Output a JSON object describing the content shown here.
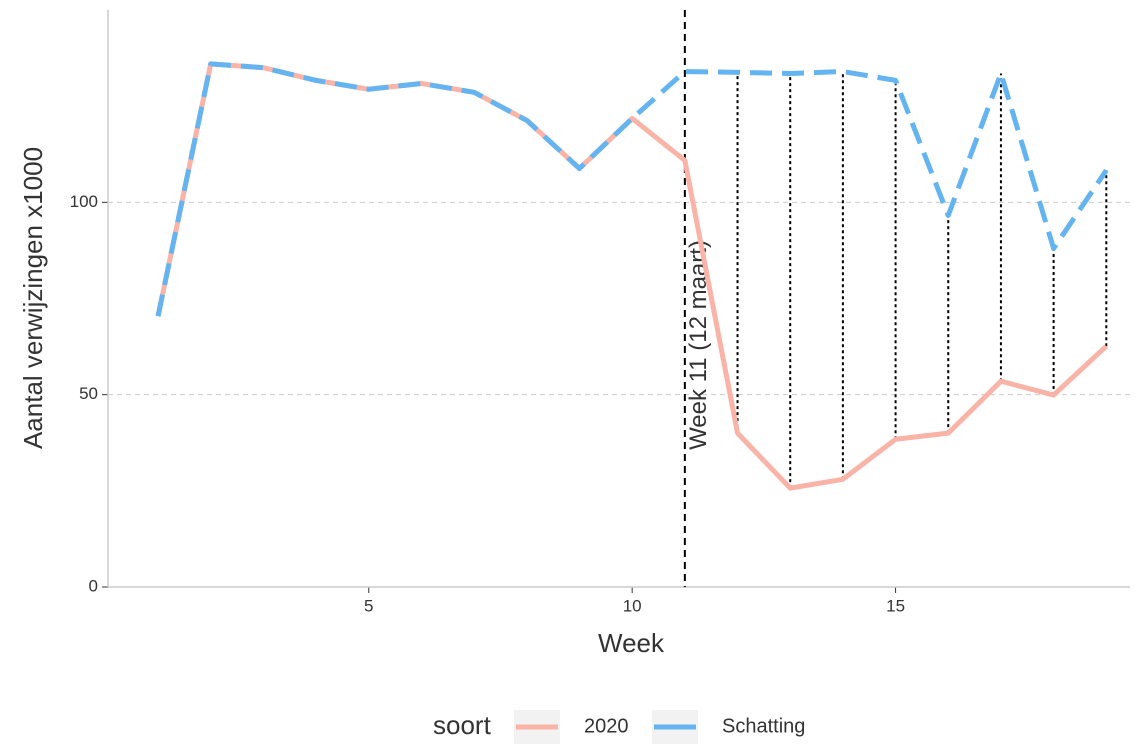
{
  "chart_data": {
    "type": "line",
    "x": [
      1,
      2,
      3,
      4,
      5,
      6,
      7,
      8,
      9,
      10,
      11,
      12,
      13,
      14,
      15,
      16,
      17,
      18,
      19
    ],
    "series": [
      {
        "name": "2020",
        "color": "#f9b3a7",
        "dash": false,
        "values": [
          70.4,
          136,
          135,
          131.7,
          129.4,
          130.9,
          128.6,
          121.3,
          108.8,
          121.8,
          110.9,
          40,
          25.7,
          28,
          38.4,
          40,
          53.5,
          49.9,
          62.6
        ]
      },
      {
        "name": "Schatting",
        "color": "#63b4f0",
        "dash": true,
        "values": [
          70.4,
          136,
          135,
          131.7,
          129.4,
          130.9,
          128.6,
          121.3,
          108.8,
          121.8,
          134,
          133.8,
          133.5,
          134,
          131.7,
          96.6,
          133.5,
          88,
          108.3
        ]
      }
    ],
    "xlabel": "Week",
    "ylabel": "Aantal verwijzingen x1000",
    "xlim": [
      0.05,
      19.45
    ],
    "ylim": [
      0,
      150
    ],
    "xticks": [
      5,
      10,
      15
    ],
    "yticks": [
      0,
      50,
      100
    ],
    "grid": true,
    "vline": {
      "x": 11,
      "label": "Week 11 (12 maart)"
    },
    "legend_title": "soort",
    "legend": "bottom"
  }
}
